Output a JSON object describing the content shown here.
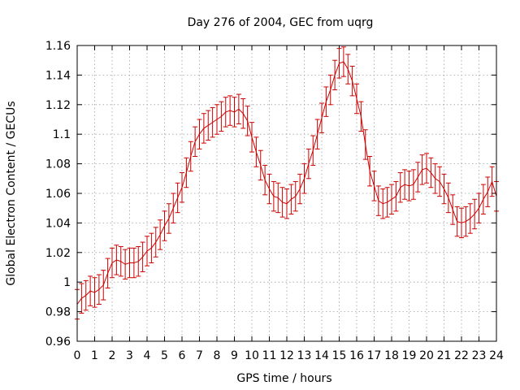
{
  "chart_data": {
    "type": "line",
    "title": "Day 276 of 2004, GEC from uqrg",
    "xlabel": "GPS time / hours",
    "ylabel": "Global Electron Content / GECUs",
    "xlim": [
      0,
      24
    ],
    "ylim": [
      0.96,
      1.16
    ],
    "xticks": [
      0,
      1,
      2,
      3,
      4,
      5,
      6,
      7,
      8,
      9,
      10,
      11,
      12,
      13,
      14,
      15,
      16,
      17,
      18,
      19,
      20,
      21,
      22,
      23,
      24
    ],
    "yticks": [
      0.96,
      0.98,
      1,
      1.02,
      1.04,
      1.06,
      1.08,
      1.1,
      1.12,
      1.14,
      1.16
    ],
    "ytick_labels": [
      "0.96",
      "0.98",
      "1",
      "1.02",
      "1.04",
      "1.06",
      "1.08",
      "1.1",
      "1.12",
      "1.14",
      "1.16"
    ],
    "grid": true,
    "error": 0.01,
    "color": "#cc0000",
    "series": [
      {
        "x": [
          0,
          0.25,
          0.5,
          0.75,
          1,
          1.25,
          1.5,
          1.75,
          2,
          2.25,
          2.5,
          2.75,
          3,
          3.25,
          3.5,
          3.75,
          4,
          4.25,
          4.5,
          4.75,
          5,
          5.25,
          5.5,
          5.75,
          6,
          6.25,
          6.5,
          6.75,
          7,
          7.25,
          7.5,
          7.75,
          8,
          8.25,
          8.5,
          8.75,
          9,
          9.25,
          9.5,
          9.75,
          10,
          10.25,
          10.5,
          10.75,
          11,
          11.25,
          11.5,
          11.75,
          12,
          12.25,
          12.5,
          12.75,
          13,
          13.25,
          13.5,
          13.75,
          14,
          14.25,
          14.5,
          14.75,
          15,
          15.25,
          15.5,
          15.75,
          16,
          16.25,
          16.5,
          16.75,
          17,
          17.25,
          17.5,
          17.75,
          18,
          18.25,
          18.5,
          18.75,
          19,
          19.25,
          19.5,
          19.75,
          20,
          20.25,
          20.5,
          20.75,
          21,
          21.25,
          21.5,
          21.75,
          22,
          22.25,
          22.5,
          22.75,
          23,
          23.25,
          23.5,
          23.75,
          24
        ],
        "y": [
          0.985,
          0.989,
          0.991,
          0.994,
          0.993,
          0.995,
          0.998,
          1.006,
          1.013,
          1.015,
          1.014,
          1.012,
          1.013,
          1.013,
          1.014,
          1.017,
          1.021,
          1.023,
          1.027,
          1.032,
          1.038,
          1.043,
          1.05,
          1.057,
          1.064,
          1.074,
          1.085,
          1.095,
          1.1,
          1.104,
          1.106,
          1.108,
          1.11,
          1.112,
          1.115,
          1.116,
          1.115,
          1.117,
          1.114,
          1.109,
          1.098,
          1.088,
          1.079,
          1.069,
          1.063,
          1.058,
          1.057,
          1.054,
          1.053,
          1.056,
          1.058,
          1.063,
          1.07,
          1.08,
          1.089,
          1.1,
          1.111,
          1.122,
          1.13,
          1.14,
          1.148,
          1.149,
          1.144,
          1.136,
          1.124,
          1.112,
          1.093,
          1.075,
          1.065,
          1.055,
          1.053,
          1.054,
          1.056,
          1.058,
          1.064,
          1.066,
          1.065,
          1.066,
          1.071,
          1.076,
          1.077,
          1.074,
          1.07,
          1.068,
          1.063,
          1.057,
          1.049,
          1.041,
          1.04,
          1.041,
          1.043,
          1.046,
          1.05,
          1.056,
          1.061,
          1.068,
          1.058
        ]
      }
    ]
  }
}
